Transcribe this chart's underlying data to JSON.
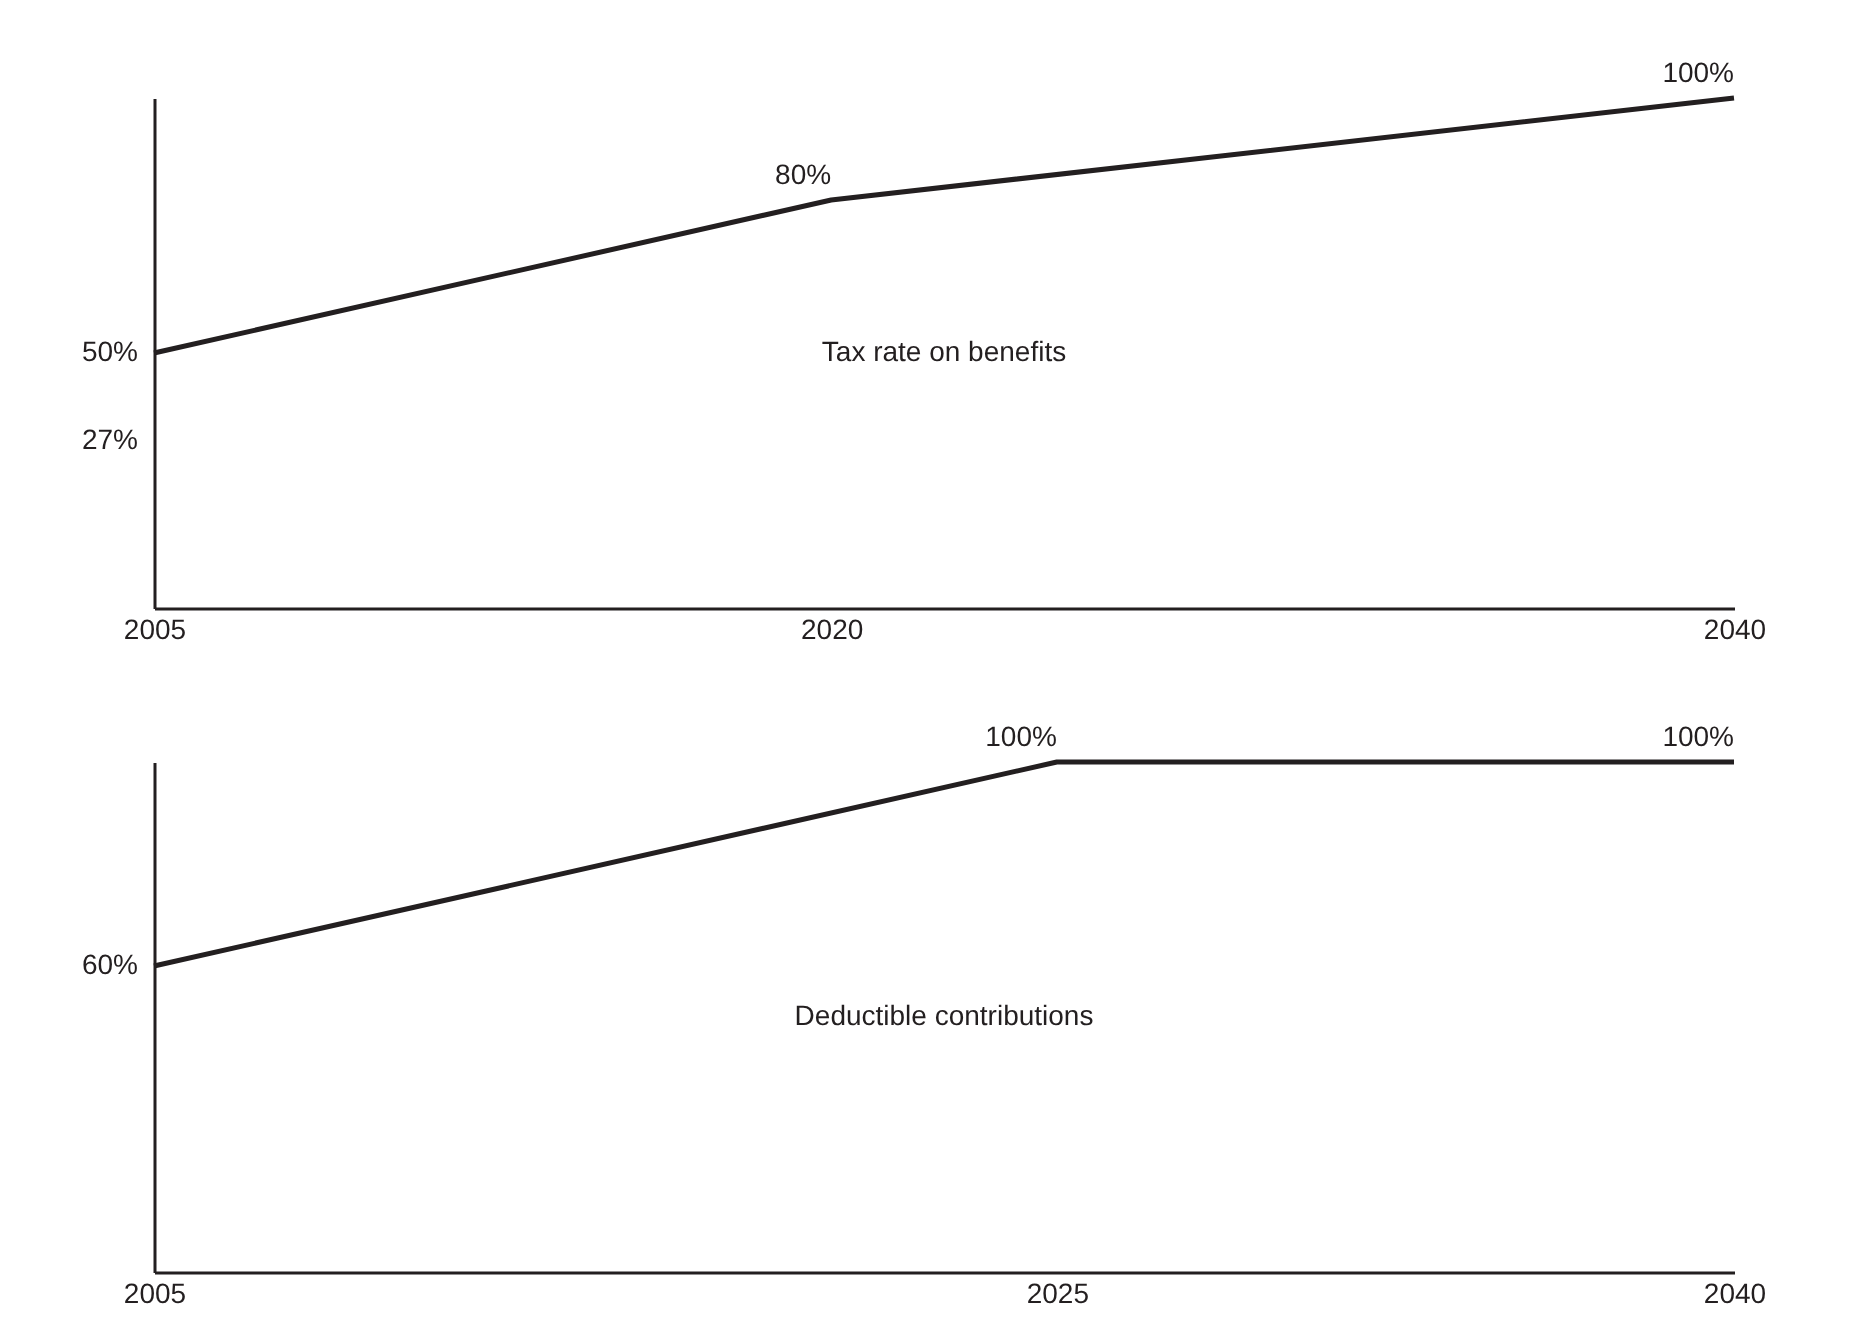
{
  "chart_data": [
    {
      "type": "line",
      "x": [
        2005,
        2020,
        2040
      ],
      "xlim": [
        2005,
        2040
      ],
      "xticks": [
        2005,
        2020,
        2040
      ],
      "tick_labels": "x",
      "series": [
        {
          "name": "Tax rate on benefits",
          "color": "#231f20",
          "values": [
            50,
            80,
            100
          ],
          "value_labels": [
            "50%",
            "80%",
            "100%"
          ]
        }
      ],
      "annotations": [
        "27%"
      ]
    },
    {
      "type": "line",
      "x": [
        2005,
        2025,
        2040
      ],
      "xlim": [
        2005,
        2040
      ],
      "xticks": [
        2005,
        2025,
        2040
      ],
      "tick_labels": "x",
      "series": [
        {
          "name": "Deductible contributions",
          "color": "#231f20",
          "values": [
            60,
            100,
            100
          ],
          "value_labels": [
            "60%",
            "100%",
            "100%"
          ]
        }
      ]
    }
  ]
}
